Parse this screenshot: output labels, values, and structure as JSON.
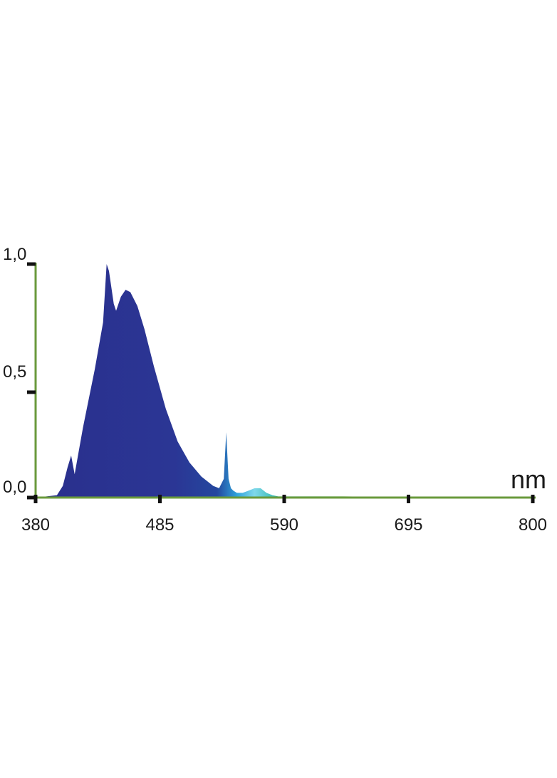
{
  "chart_data": {
    "type": "area",
    "title": "",
    "xlabel": "nm",
    "ylabel": "",
    "xlim": [
      380,
      800
    ],
    "ylim": [
      0,
      1
    ],
    "x_ticks": [
      380,
      485,
      590,
      695,
      800
    ],
    "x_tick_labels": [
      "380",
      "485",
      "590",
      "695",
      "800"
    ],
    "y_ticks": [
      0,
      0.5,
      1
    ],
    "y_tick_labels": [
      "0,0",
      "0,5",
      "1,0"
    ],
    "grid": false,
    "legend": "none",
    "series": [
      {
        "x": [
          380,
          398,
          403,
          407,
          410,
          413,
          420,
          430,
          437,
          440,
          442,
          446,
          448,
          452,
          456,
          460,
          466,
          472,
          480,
          490,
          500,
          510,
          520,
          530,
          535,
          539,
          541,
          543,
          545,
          547,
          550,
          555,
          560,
          565,
          570,
          575,
          580,
          585,
          590,
          600,
          620,
          640,
          660,
          680,
          700,
          720,
          740,
          760,
          780,
          800
        ],
        "y": [
          0.0,
          0.01,
          0.05,
          0.13,
          0.18,
          0.1,
          0.3,
          0.55,
          0.75,
          1.0,
          0.97,
          0.83,
          0.8,
          0.86,
          0.89,
          0.88,
          0.82,
          0.72,
          0.56,
          0.38,
          0.24,
          0.15,
          0.09,
          0.05,
          0.04,
          0.08,
          0.28,
          0.08,
          0.04,
          0.03,
          0.02,
          0.02,
          0.03,
          0.04,
          0.04,
          0.02,
          0.01,
          0.005,
          0.005,
          0.005,
          0.005,
          0.005,
          0.004,
          0.004,
          0.004,
          0.004,
          0.003,
          0.003,
          0.003,
          0.003
        ]
      }
    ]
  }
}
